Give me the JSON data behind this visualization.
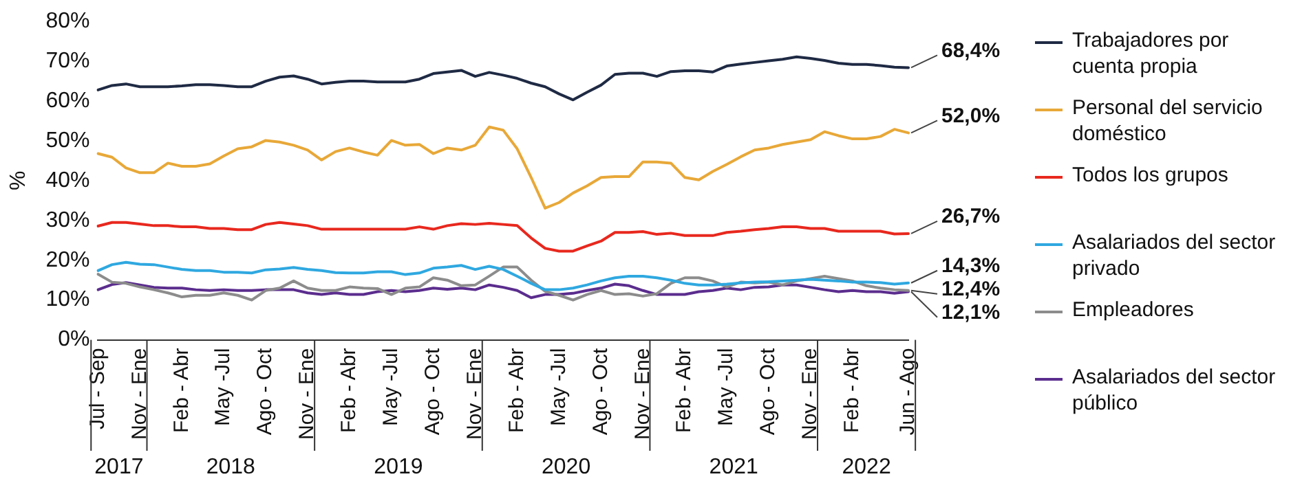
{
  "chart_data": {
    "type": "line",
    "ylabel": "%",
    "categories": [
      "Jul - Sep",
      null,
      null,
      "Nov - Ene",
      null,
      null,
      "Feb - Abr",
      null,
      null,
      "May -Jul",
      null,
      null,
      "Ago - Oct",
      null,
      null,
      "Nov - Ene",
      null,
      null,
      "Feb - Abr",
      null,
      null,
      "May -Jul",
      null,
      null,
      "Ago - Oct",
      null,
      null,
      "Nov - Ene",
      null,
      null,
      "Feb - Abr",
      null,
      null,
      "May -Jul",
      null,
      null,
      "Ago - Oct",
      null,
      null,
      "Nov - Ene",
      null,
      null,
      "Feb - Abr",
      null,
      null,
      "May -Jul",
      null,
      null,
      "Ago - Oct",
      null,
      null,
      "Nov - Ene",
      null,
      null,
      "Feb - Abr",
      null,
      null,
      null,
      "Jun - Ago"
    ],
    "series": [
      {
        "name": "Trabajadores por cuenta propia",
        "color": "#1f2a44",
        "values": [
          62.8,
          63.9,
          64.3,
          63.6,
          63.6,
          63.6,
          63.8,
          64.1,
          64.1,
          63.9,
          63.6,
          63.6,
          65.0,
          66.0,
          66.3,
          65.5,
          64.3,
          64.7,
          65.0,
          65.0,
          64.8,
          64.8,
          64.8,
          65.5,
          66.9,
          67.3,
          67.7,
          66.2,
          67.2,
          66.5,
          65.7,
          64.5,
          63.6,
          61.8,
          60.3,
          62.2,
          64.0,
          66.7,
          67.0,
          67.0,
          66.2,
          67.4,
          67.6,
          67.6,
          67.3,
          68.8,
          69.3,
          69.7,
          70.1,
          70.5,
          71.1,
          70.7,
          70.2,
          69.5,
          69.2,
          69.2,
          68.9,
          68.5,
          68.4
        ],
        "value_labels": [
          null,
          null,
          null,
          null,
          null,
          null,
          null,
          null,
          null,
          null,
          null,
          null,
          null,
          null,
          null,
          null,
          null,
          null,
          null,
          null,
          null,
          null,
          null,
          null,
          null,
          null,
          null,
          null,
          null,
          null,
          null,
          null,
          null,
          null,
          null,
          null,
          null,
          null,
          null,
          null,
          null,
          null,
          null,
          null,
          null,
          null,
          null,
          null,
          null,
          null,
          null,
          null,
          null,
          null,
          null,
          null,
          null,
          null,
          "68,4%"
        ]
      },
      {
        "name": "Personal del servicio doméstico",
        "color": "#e8a838",
        "values": [
          46.8,
          45.9,
          43.2,
          42.0,
          42.0,
          44.4,
          43.6,
          43.6,
          44.2,
          46.2,
          48.0,
          48.5,
          50.1,
          49.7,
          48.9,
          47.7,
          45.2,
          47.3,
          48.2,
          47.2,
          46.4,
          50.1,
          48.9,
          49.1,
          46.8,
          48.2,
          47.7,
          48.9,
          53.5,
          52.7,
          48.0,
          40.8,
          33.1,
          34.5,
          36.9,
          38.7,
          40.8,
          41.0,
          41.0,
          44.7,
          44.7,
          44.4,
          40.8,
          40.2,
          42.3,
          44.1,
          46.0,
          47.7,
          48.2,
          49.1,
          49.7,
          50.3,
          52.3,
          51.3,
          50.5,
          50.5,
          51.1,
          52.9,
          52.0
        ],
        "value_labels": [
          null,
          null,
          null,
          null,
          null,
          null,
          null,
          null,
          null,
          null,
          null,
          null,
          null,
          null,
          null,
          null,
          null,
          null,
          null,
          null,
          null,
          null,
          null,
          null,
          null,
          null,
          null,
          null,
          null,
          null,
          null,
          null,
          null,
          null,
          null,
          null,
          null,
          null,
          null,
          null,
          null,
          null,
          null,
          null,
          null,
          null,
          null,
          null,
          null,
          null,
          null,
          null,
          null,
          null,
          null,
          null,
          null,
          null,
          "52,0%"
        ]
      },
      {
        "name": "Todos los grupos",
        "color": "#e8281e",
        "values": [
          28.6,
          29.5,
          29.5,
          29.1,
          28.7,
          28.7,
          28.4,
          28.4,
          28.0,
          28.0,
          27.7,
          27.7,
          29.0,
          29.5,
          29.1,
          28.7,
          27.8,
          27.8,
          27.8,
          27.8,
          27.8,
          27.8,
          27.8,
          28.4,
          27.8,
          28.7,
          29.2,
          29.0,
          29.3,
          29.0,
          28.7,
          25.6,
          23.0,
          22.3,
          22.3,
          23.6,
          24.8,
          27.0,
          27.0,
          27.2,
          26.5,
          26.8,
          26.2,
          26.2,
          26.2,
          27.0,
          27.3,
          27.7,
          28.0,
          28.4,
          28.4,
          28.0,
          28.0,
          27.3,
          27.3,
          27.3,
          27.3,
          26.6,
          26.7
        ],
        "value_labels": [
          null,
          null,
          null,
          null,
          null,
          null,
          null,
          null,
          null,
          null,
          null,
          null,
          null,
          null,
          null,
          null,
          null,
          null,
          null,
          null,
          null,
          null,
          null,
          null,
          null,
          null,
          null,
          null,
          null,
          null,
          null,
          null,
          null,
          null,
          null,
          null,
          null,
          null,
          null,
          null,
          null,
          null,
          null,
          null,
          null,
          null,
          null,
          null,
          null,
          null,
          null,
          null,
          null,
          null,
          null,
          null,
          null,
          null,
          "26,7%"
        ]
      },
      {
        "name": "Asalariados del sector privado",
        "color": "#2fa8e0",
        "values": [
          17.4,
          18.9,
          19.5,
          19.0,
          18.9,
          18.3,
          17.7,
          17.4,
          17.4,
          17.0,
          17.0,
          16.8,
          17.6,
          17.8,
          18.2,
          17.7,
          17.4,
          16.9,
          16.8,
          16.8,
          17.1,
          17.1,
          16.4,
          16.8,
          18.0,
          18.3,
          18.7,
          17.7,
          18.5,
          17.7,
          16.0,
          14.2,
          12.6,
          12.6,
          13.0,
          13.8,
          14.8,
          15.6,
          16.0,
          16.0,
          15.6,
          15.0,
          14.2,
          13.8,
          13.8,
          14.0,
          14.3,
          14.5,
          14.6,
          14.8,
          15.0,
          15.2,
          15.0,
          14.8,
          14.5,
          14.5,
          14.4,
          14.0,
          14.3
        ],
        "value_labels": [
          null,
          null,
          null,
          null,
          null,
          null,
          null,
          null,
          null,
          null,
          null,
          null,
          null,
          null,
          null,
          null,
          null,
          null,
          null,
          null,
          null,
          null,
          null,
          null,
          null,
          null,
          null,
          null,
          null,
          null,
          null,
          null,
          null,
          null,
          null,
          null,
          null,
          null,
          null,
          null,
          null,
          null,
          null,
          null,
          null,
          null,
          null,
          null,
          null,
          null,
          null,
          null,
          null,
          null,
          null,
          null,
          null,
          null,
          "14,3%"
        ]
      },
      {
        "name": "Empleadores",
        "color": "#8c8c8c",
        "values": [
          16.5,
          14.5,
          14.2,
          13.3,
          12.6,
          11.8,
          10.8,
          11.2,
          11.2,
          11.8,
          11.2,
          10.0,
          12.4,
          13.0,
          14.8,
          13.0,
          12.4,
          12.4,
          13.3,
          13.0,
          12.9,
          11.4,
          13.0,
          13.3,
          15.6,
          15.0,
          13.6,
          13.8,
          16.0,
          18.3,
          18.3,
          15.0,
          12.2,
          11.2,
          10.0,
          11.4,
          12.4,
          11.4,
          11.6,
          11.0,
          11.6,
          14.2,
          15.6,
          15.6,
          14.8,
          13.3,
          14.5,
          14.3,
          14.5,
          13.8,
          14.8,
          15.4,
          16.0,
          15.4,
          14.8,
          13.6,
          13.0,
          12.6,
          12.4
        ],
        "value_labels": [
          null,
          null,
          null,
          null,
          null,
          null,
          null,
          null,
          null,
          null,
          null,
          null,
          null,
          null,
          null,
          null,
          null,
          null,
          null,
          null,
          null,
          null,
          null,
          null,
          null,
          null,
          null,
          null,
          null,
          null,
          null,
          null,
          null,
          null,
          null,
          null,
          null,
          null,
          null,
          null,
          null,
          null,
          null,
          null,
          null,
          null,
          null,
          null,
          null,
          null,
          null,
          null,
          null,
          null,
          null,
          null,
          null,
          null,
          "12,4%"
        ]
      },
      {
        "name": "Asalariados del sector público",
        "color": "#5b2d8e",
        "values": [
          12.6,
          13.9,
          14.4,
          13.8,
          13.2,
          13.0,
          13.0,
          12.6,
          12.4,
          12.6,
          12.4,
          12.4,
          12.6,
          12.6,
          12.6,
          11.8,
          11.4,
          11.8,
          11.4,
          11.4,
          12.1,
          12.4,
          12.1,
          12.4,
          13.0,
          12.7,
          13.0,
          12.6,
          13.8,
          13.2,
          12.4,
          10.6,
          11.4,
          11.4,
          11.7,
          12.4,
          13.0,
          14.0,
          13.6,
          12.4,
          11.4,
          11.4,
          11.4,
          12.1,
          12.4,
          13.0,
          12.6,
          13.2,
          13.3,
          13.8,
          13.8,
          13.2,
          12.6,
          12.1,
          12.4,
          12.1,
          12.1,
          11.7,
          12.1
        ],
        "value_labels": [
          null,
          null,
          null,
          null,
          null,
          null,
          null,
          null,
          null,
          null,
          null,
          null,
          null,
          null,
          null,
          null,
          null,
          null,
          null,
          null,
          null,
          null,
          null,
          null,
          null,
          null,
          null,
          null,
          null,
          null,
          null,
          null,
          null,
          null,
          null,
          null,
          null,
          null,
          null,
          null,
          null,
          null,
          null,
          null,
          null,
          null,
          null,
          null,
          null,
          null,
          null,
          null,
          null,
          null,
          null,
          null,
          null,
          null,
          "12,1%"
        ]
      }
    ],
    "ylim": [
      0,
      80
    ],
    "yticks": [
      {
        "value": 0,
        "label": "0%"
      },
      {
        "value": 10,
        "label": "10%"
      },
      {
        "value": 20,
        "label": "20%"
      },
      {
        "value": 30,
        "label": "30%"
      },
      {
        "value": 40,
        "label": "40%"
      },
      {
        "value": 50,
        "label": "50%"
      },
      {
        "value": 60,
        "label": "60%"
      },
      {
        "value": 70,
        "label": "70%"
      },
      {
        "value": 80,
        "label": "80%"
      }
    ],
    "annotations": [
      "2017",
      "2018",
      "2019",
      "2020",
      "2021",
      "2022"
    ],
    "grid": false,
    "legend": "right",
    "marker": "none",
    "line_style": "solid"
  }
}
